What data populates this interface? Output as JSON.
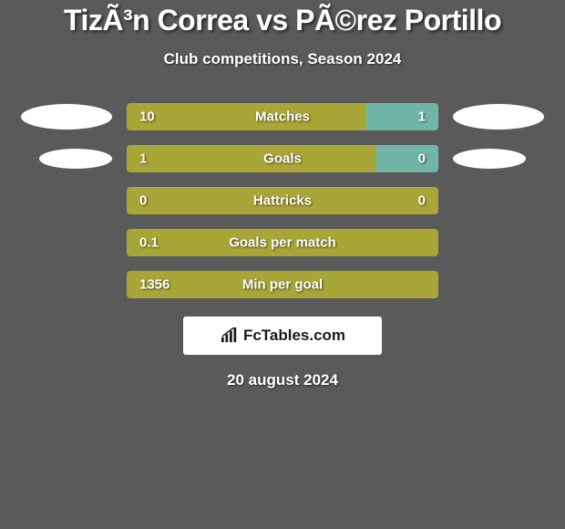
{
  "title": "TizÃ³n Correa vs PÃ©rez Portillo",
  "subtitle": "Club competitions, Season 2024",
  "date": "20 august 2024",
  "brand": "FcTables.com",
  "colors": {
    "background": "#5a5a5a",
    "bar_left": "#a8a636",
    "bar_right_teal": "#6fb5a8",
    "text": "#ffffff",
    "brand_bg": "#ffffff",
    "brand_text": "#1a1a1a"
  },
  "stats": [
    {
      "label": "Matches",
      "left_value": "10",
      "right_value": "1",
      "left_pct": 77,
      "right_color": "#6fb5a8",
      "show_avatars": true,
      "avatar_small": false
    },
    {
      "label": "Goals",
      "left_value": "1",
      "right_value": "0",
      "left_pct": 80,
      "right_color": "#6fb5a8",
      "show_avatars": true,
      "avatar_small": true
    },
    {
      "label": "Hattricks",
      "left_value": "0",
      "right_value": "0",
      "left_pct": 100,
      "right_color": "#6fb5a8",
      "show_avatars": false
    },
    {
      "label": "Goals per match",
      "left_value": "0.1",
      "right_value": "",
      "left_pct": 100,
      "right_color": "#6fb5a8",
      "show_avatars": false
    },
    {
      "label": "Min per goal",
      "left_value": "1356",
      "right_value": "",
      "left_pct": 100,
      "right_color": "#6fb5a8",
      "show_avatars": false
    }
  ]
}
